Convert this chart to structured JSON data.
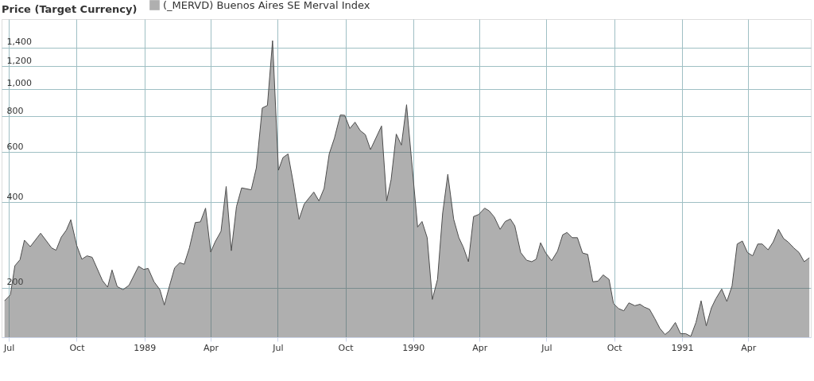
{
  "chart_data": {
    "type": "area",
    "ylabel": "Price (Target Currency)",
    "x": [
      "1988-06-25",
      "1988-07-03",
      "1988-07-09",
      "1988-07-16",
      "1988-07-22",
      "1988-07-30",
      "1988-08-13",
      "1988-08-28",
      "1988-09-03",
      "1988-09-10",
      "1988-09-17",
      "1988-09-23",
      "1988-10-01",
      "1988-10-08",
      "1988-10-15",
      "1988-10-22",
      "1988-11-05",
      "1988-11-12",
      "1988-11-18",
      "1988-11-25",
      "1988-12-03",
      "1988-12-11",
      "1988-12-24",
      "1988-12-31",
      "1989-01-06",
      "1989-01-14",
      "1989-01-22",
      "1989-01-28",
      "1989-02-04",
      "1989-02-11",
      "1989-02-18",
      "1989-02-24",
      "1989-03-03",
      "1989-03-11",
      "1989-03-18",
      "1989-03-25",
      "1989-04-01",
      "1989-04-07",
      "1989-04-15",
      "1989-04-22",
      "1989-04-29",
      "1989-05-06",
      "1989-05-13",
      "1989-05-26",
      "1989-06-02",
      "1989-06-10",
      "1989-06-17",
      "1989-06-24",
      "1989-07-02",
      "1989-07-08",
      "1989-07-15",
      "1989-07-22",
      "1989-07-30",
      "1989-08-06",
      "1989-08-19",
      "1989-08-26",
      "1989-09-02",
      "1989-09-09",
      "1989-09-16",
      "1989-09-24",
      "1989-09-30",
      "1989-10-07",
      "1989-10-14",
      "1989-10-21",
      "1989-10-28",
      "1989-11-04",
      "1989-11-19",
      "1989-11-26",
      "1989-12-02",
      "1989-12-09",
      "1989-12-16",
      "1989-12-23",
      "1990-01-07",
      "1990-01-13",
      "1990-01-20",
      "1990-01-27",
      "1990-02-03",
      "1990-02-10",
      "1990-02-17",
      "1990-02-25",
      "1990-03-04",
      "1990-03-10",
      "1990-03-17",
      "1990-03-24",
      "1990-03-31",
      "1990-04-08",
      "1990-04-14",
      "1990-04-21",
      "1990-04-29",
      "1990-05-06",
      "1990-05-13",
      "1990-05-19",
      "1990-05-27",
      "1990-06-04",
      "1990-06-11",
      "1990-06-17",
      "1990-06-23",
      "1990-06-30",
      "1990-07-08",
      "1990-07-16",
      "1990-07-23",
      "1990-07-29",
      "1990-08-05",
      "1990-08-12",
      "1990-08-19",
      "1990-08-26",
      "1990-09-02",
      "1990-09-09",
      "1990-09-16",
      "1990-09-24",
      "1990-09-30",
      "1990-10-07",
      "1990-10-14",
      "1990-10-21",
      "1990-10-29",
      "1990-11-05",
      "1990-11-11",
      "1990-11-18",
      "1990-11-25",
      "1990-12-02",
      "1990-12-09",
      "1990-12-15",
      "1990-12-23",
      "1990-12-30",
      "1991-01-06",
      "1991-01-13",
      "1991-01-20",
      "1991-01-27",
      "1991-02-03",
      "1991-02-10",
      "1991-02-16",
      "1991-02-24",
      "1991-03-03",
      "1991-03-10",
      "1991-03-17",
      "1991-03-24",
      "1991-03-31",
      "1991-04-07",
      "1991-04-14",
      "1991-04-20",
      "1991-04-28",
      "1991-05-05",
      "1991-05-12",
      "1991-05-19",
      "1991-05-25",
      "1991-06-02",
      "1991-06-09",
      "1991-06-16",
      "1991-06-23"
    ],
    "series": [
      {
        "name": "(_MERVD) Buenos Aires SE Merval Index",
        "color": "#4d4d4d",
        "values": [
          180,
          189,
          239,
          251,
          294,
          279,
          311,
          276,
          271,
          301,
          319,
          347,
          282,
          252,
          259,
          256,
          212,
          201,
          231,
          202,
          197,
          204,
          238,
          232,
          234,
          210,
          197,
          174,
          203,
          235,
          245,
          242,
          276,
          339,
          341,
          381,
          267,
          290,
          316,
          454,
          270,
          386,
          449,
          442,
          528,
          857,
          875,
          1478,
          518,
          573,
          591,
          470,
          348,
          394,
          434,
          404,
          447,
          592,
          671,
          810,
          808,
          726,
          764,
          714,
          691,
          612,
          741,
          404,
          480,
          694,
          635,
          880,
          327,
          342,
          300,
          182,
          214,
          366,
          501,
          348,
          300,
          278,
          247,
          356,
          362,
          381,
          373,
          355,
          321,
          342,
          349,
          330,
          266,
          250,
          247,
          252,
          288,
          265,
          249,
          269,
          307,
          313,
          300,
          300,
          265,
          262,
          210,
          211,
          222,
          214,
          176,
          169,
          166,
          177,
          173,
          175,
          171,
          168,
          156,
          144,
          137,
          141,
          151,
          138,
          138,
          135,
          151,
          180,
          147,
          170,
          183,
          198,
          179,
          203,
          285,
          292,
          266,
          259,
          285,
          285,
          272,
          290,
          321,
          298,
          290,
          276,
          266,
          247,
          255
        ]
      }
    ],
    "log": "y",
    "ylim": [
      134,
      1760
    ],
    "yticks": [
      {
        "value": 200,
        "label": "200"
      },
      {
        "value": 400,
        "label": "400"
      },
      {
        "value": 600,
        "label": "600"
      },
      {
        "value": 800,
        "label": "800"
      },
      {
        "value": 1000,
        "label": "1,000"
      },
      {
        "value": 1200,
        "label": "1,200"
      },
      {
        "value": 1400,
        "label": "1,400"
      }
    ],
    "xlim": [
      "1988-06-21",
      "1991-06-25"
    ],
    "xticks": [
      {
        "value": "1988-07-01",
        "label": "Jul"
      },
      {
        "value": "1988-10-01",
        "label": "Oct"
      },
      {
        "value": "1989-01-01",
        "label": "1989"
      },
      {
        "value": "1989-04-01",
        "label": "Apr"
      },
      {
        "value": "1989-07-01",
        "label": "Jul"
      },
      {
        "value": "1989-10-01",
        "label": "Oct"
      },
      {
        "value": "1990-01-01",
        "label": "1990"
      },
      {
        "value": "1990-04-01",
        "label": "Apr"
      },
      {
        "value": "1990-07-01",
        "label": "Jul"
      },
      {
        "value": "1990-10-01",
        "label": "Oct"
      },
      {
        "value": "1991-01-01",
        "label": "1991"
      },
      {
        "value": "1991-04-01",
        "label": "Apr"
      }
    ],
    "grid": true,
    "legend": "top left"
  }
}
